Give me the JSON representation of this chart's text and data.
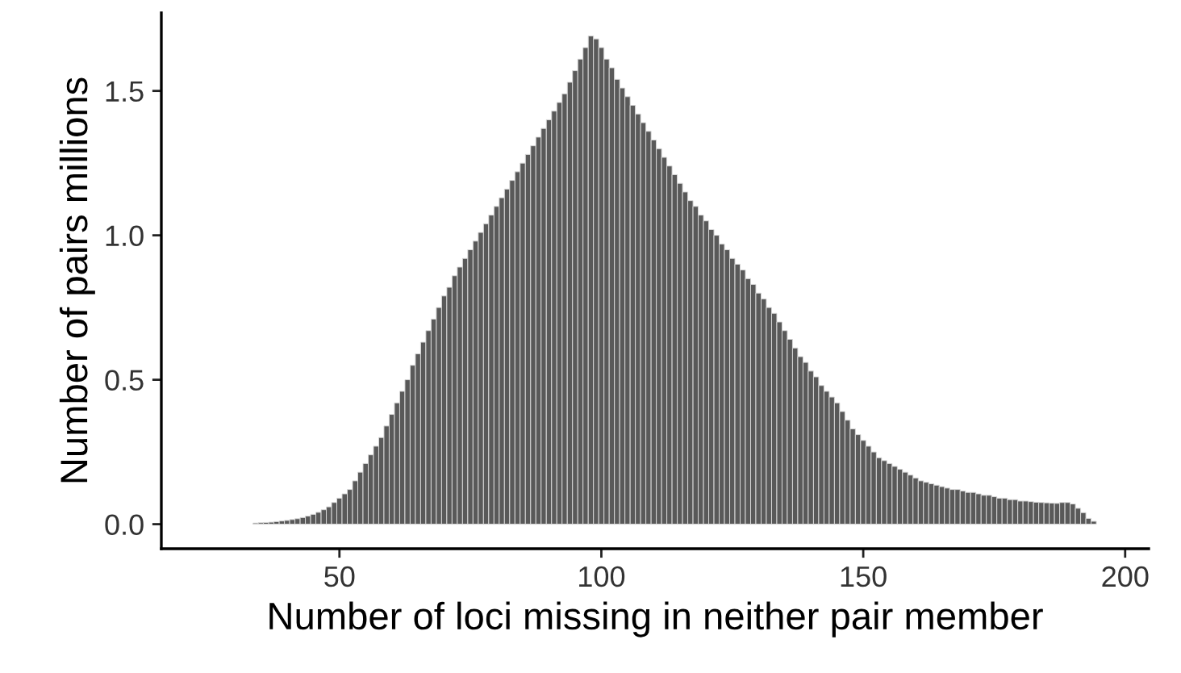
{
  "chart_data": {
    "type": "histogram",
    "xlabel": "Number of loci missing in neither pair member",
    "ylabel": "Number of pairs millions",
    "bins": [
      29.5,
      30.5,
      31.5,
      32.5,
      33.5,
      34.5,
      35.5,
      36.5,
      37.5,
      38.5,
      39.5,
      40.5,
      41.5,
      42.5,
      43.5,
      44.5,
      45.5,
      46.5,
      47.5,
      48.5,
      49.5,
      50.5,
      51.5,
      52.5,
      53.5,
      54.5,
      55.5,
      56.5,
      57.5,
      58.5,
      59.5,
      60.5,
      61.5,
      62.5,
      63.5,
      64.5,
      65.5,
      66.5,
      67.5,
      68.5,
      69.5,
      70.5,
      71.5,
      72.5,
      73.5,
      74.5,
      75.5,
      76.5,
      77.5,
      78.5,
      79.5,
      80.5,
      81.5,
      82.5,
      83.5,
      84.5,
      85.5,
      86.5,
      87.5,
      88.5,
      89.5,
      90.5,
      91.5,
      92.5,
      93.5,
      94.5,
      95.5,
      96.5,
      97.5,
      98.5,
      99.5,
      100.5,
      101.5,
      102.5,
      103.5,
      104.5,
      105.5,
      106.5,
      107.5,
      108.5,
      109.5,
      110.5,
      111.5,
      112.5,
      113.5,
      114.5,
      115.5,
      116.5,
      117.5,
      118.5,
      119.5,
      120.5,
      121.5,
      122.5,
      123.5,
      124.5,
      125.5,
      126.5,
      127.5,
      128.5,
      129.5,
      130.5,
      131.5,
      132.5,
      133.5,
      134.5,
      135.5,
      136.5,
      137.5,
      138.5,
      139.5,
      140.5,
      141.5,
      142.5,
      143.5,
      144.5,
      145.5,
      146.5,
      147.5,
      148.5,
      149.5,
      150.5,
      151.5,
      152.5,
      153.5,
      154.5,
      155.5,
      156.5,
      157.5,
      158.5,
      159.5,
      160.5,
      161.5,
      162.5,
      163.5,
      164.5,
      165.5,
      166.5,
      167.5,
      168.5,
      169.5,
      170.5,
      171.5,
      172.5,
      173.5,
      174.5,
      175.5,
      176.5,
      177.5,
      178.5,
      179.5,
      180.5,
      181.5,
      182.5,
      183.5,
      184.5,
      185.5,
      186.5,
      187.5,
      188.5,
      189.5,
      190.5,
      191.5,
      192.5,
      193.5,
      194.5
    ],
    "values": [
      null,
      null,
      null,
      null,
      0.004,
      0.005,
      0.006,
      0.007,
      0.009,
      0.011,
      0.013,
      0.016,
      0.019,
      0.023,
      0.028,
      0.034,
      0.041,
      0.05,
      0.06,
      0.075,
      0.09,
      0.105,
      0.12,
      0.15,
      0.18,
      0.21,
      0.24,
      0.27,
      0.3,
      0.34,
      0.38,
      0.42,
      0.46,
      0.5,
      0.55,
      0.59,
      0.63,
      0.67,
      0.71,
      0.75,
      0.79,
      0.82,
      0.86,
      0.89,
      0.92,
      0.95,
      0.98,
      1.01,
      1.04,
      1.07,
      1.1,
      1.13,
      1.16,
      1.19,
      1.22,
      1.25,
      1.28,
      1.31,
      1.34,
      1.37,
      1.4,
      1.43,
      1.46,
      1.49,
      1.53,
      1.57,
      1.61,
      1.65,
      1.69,
      1.68,
      1.65,
      1.61,
      1.58,
      1.54,
      1.51,
      1.48,
      1.45,
      1.42,
      1.39,
      1.36,
      1.33,
      1.3,
      1.27,
      1.24,
      1.21,
      1.18,
      1.15,
      1.12,
      1.1,
      1.07,
      1.05,
      1.02,
      1.0,
      0.97,
      0.95,
      0.92,
      0.9,
      0.88,
      0.85,
      0.83,
      0.8,
      0.78,
      0.75,
      0.73,
      0.7,
      0.67,
      0.64,
      0.61,
      0.58,
      0.56,
      0.53,
      0.51,
      0.48,
      0.46,
      0.44,
      0.42,
      0.39,
      0.36,
      0.33,
      0.31,
      0.29,
      0.27,
      0.25,
      0.23,
      0.22,
      0.21,
      0.2,
      0.19,
      0.18,
      0.17,
      0.16,
      0.15,
      0.145,
      0.14,
      0.135,
      0.13,
      0.125,
      0.12,
      0.12,
      0.115,
      0.11,
      0.11,
      0.105,
      0.1,
      0.1,
      0.095,
      0.09,
      0.09,
      0.085,
      0.085,
      0.08,
      0.08,
      0.078,
      0.076,
      0.075,
      0.074,
      0.073,
      0.072,
      0.075,
      0.075,
      0.07,
      0.055,
      0.04,
      0.02,
      0.01
    ],
    "color": "#595959",
    "xlim": [
      16,
      204.5
    ],
    "ylim": [
      -0.085,
      1.77
    ],
    "xticks": [
      50,
      100,
      150,
      200
    ],
    "yticks": [
      {
        "value": 0,
        "label": "0.0"
      },
      {
        "value": 0.5,
        "label": "0.5"
      },
      {
        "value": 1.0,
        "label": "1.0"
      },
      {
        "value": 1.5,
        "label": "1.5"
      }
    ],
    "grid": false
  }
}
